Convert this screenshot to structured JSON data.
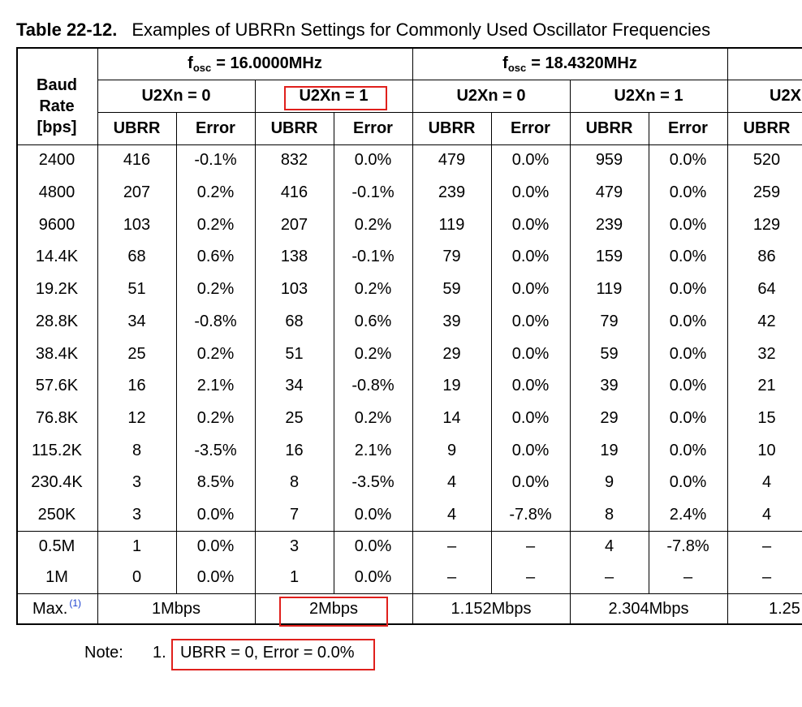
{
  "caption": {
    "number": "Table 22-12.",
    "title": "Examples of UBRRn Settings for Commonly Used Oscillator Frequencies"
  },
  "header": {
    "baud_line1": "Baud",
    "baud_line2": "Rate",
    "baud_line3": "[bps]",
    "fosc_prefix": "f",
    "fosc_sub": "osc",
    "fosc_groups": [
      "= 16.0000MHz",
      "= 18.4320MHz"
    ],
    "u2x": [
      "U2Xn = 0",
      "U2Xn = 1",
      "U2Xn = 0",
      "U2Xn = 1",
      "U2X"
    ],
    "col_labels": [
      "UBRR",
      "Error",
      "UBRR",
      "Error",
      "UBRR",
      "Error",
      "UBRR",
      "Error",
      "UBRR"
    ]
  },
  "rows": [
    [
      "2400",
      "416",
      "-0.1%",
      "832",
      "0.0%",
      "479",
      "0.0%",
      "959",
      "0.0%",
      "520"
    ],
    [
      "4800",
      "207",
      "0.2%",
      "416",
      "-0.1%",
      "239",
      "0.0%",
      "479",
      "0.0%",
      "259"
    ],
    [
      "9600",
      "103",
      "0.2%",
      "207",
      "0.2%",
      "119",
      "0.0%",
      "239",
      "0.0%",
      "129"
    ],
    [
      "14.4K",
      "68",
      "0.6%",
      "138",
      "-0.1%",
      "79",
      "0.0%",
      "159",
      "0.0%",
      "86"
    ],
    [
      "19.2K",
      "51",
      "0.2%",
      "103",
      "0.2%",
      "59",
      "0.0%",
      "119",
      "0.0%",
      "64"
    ],
    [
      "28.8K",
      "34",
      "-0.8%",
      "68",
      "0.6%",
      "39",
      "0.0%",
      "79",
      "0.0%",
      "42"
    ],
    [
      "38.4K",
      "25",
      "0.2%",
      "51",
      "0.2%",
      "29",
      "0.0%",
      "59",
      "0.0%",
      "32"
    ],
    [
      "57.6K",
      "16",
      "2.1%",
      "34",
      "-0.8%",
      "19",
      "0.0%",
      "39",
      "0.0%",
      "21"
    ],
    [
      "76.8K",
      "12",
      "0.2%",
      "25",
      "0.2%",
      "14",
      "0.0%",
      "29",
      "0.0%",
      "15"
    ],
    [
      "115.2K",
      "8",
      "-3.5%",
      "16",
      "2.1%",
      "9",
      "0.0%",
      "19",
      "0.0%",
      "10"
    ],
    [
      "230.4K",
      "3",
      "8.5%",
      "8",
      "-3.5%",
      "4",
      "0.0%",
      "9",
      "0.0%",
      "4"
    ],
    [
      "250K",
      "3",
      "0.0%",
      "7",
      "0.0%",
      "4",
      "-7.8%",
      "8",
      "2.4%",
      "4"
    ],
    [
      "0.5M",
      "1",
      "0.0%",
      "3",
      "0.0%",
      "–",
      "–",
      "4",
      "-7.8%",
      "–"
    ],
    [
      "1M",
      "0",
      "0.0%",
      "1",
      "0.0%",
      "–",
      "–",
      "–",
      "–",
      "–"
    ]
  ],
  "max_row": {
    "label": "Max.",
    "footnote_ref": "(1)",
    "values": [
      "1Mbps",
      "2Mbps",
      "1.152Mbps",
      "2.304Mbps",
      "1.25"
    ]
  },
  "note": {
    "label": "Note:",
    "number": "1.",
    "text": "UBRR = 0, Error = 0.0%"
  },
  "highlight_color": "#e0201c"
}
